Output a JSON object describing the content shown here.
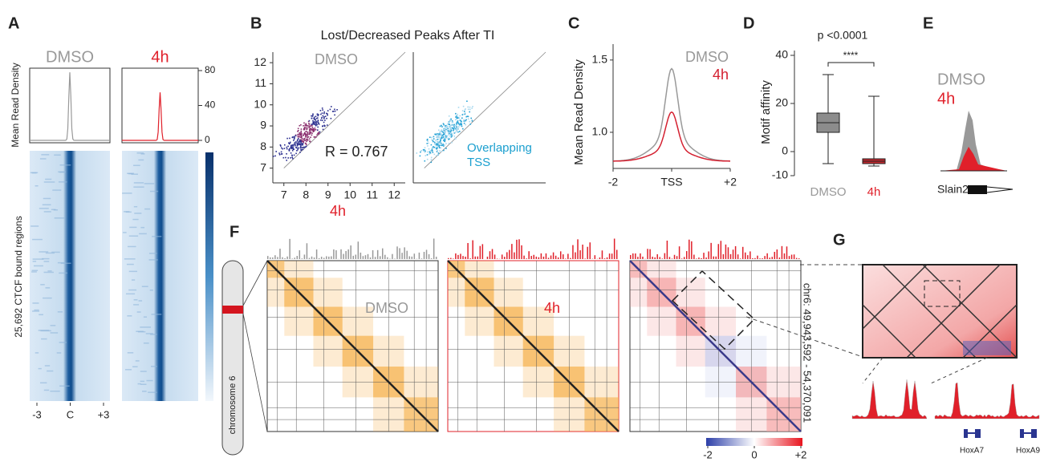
{
  "panels": {
    "A": {
      "label": "A",
      "conditions": [
        {
          "name": "DMSO",
          "color": "#999999",
          "peak": 78
        },
        {
          "name": "4h",
          "color": "#e0202a",
          "peak": 55
        }
      ],
      "ylabel": "Mean Read Density",
      "rows_label": "25,692 CTCF bound regions",
      "ylim": [
        0,
        80
      ],
      "yticks": [
        0,
        40,
        80
      ],
      "xlim": [
        -3,
        3
      ],
      "xticks": [
        -3,
        {
          "value": 0,
          "label": "C"
        },
        {
          "value": 3,
          "label": "+3"
        }
      ]
    },
    "B": {
      "label": "B",
      "title": "Lost/Decreased Peaks After TI",
      "ylabel": "DMSO",
      "xlabel": "4h",
      "annotation": "R = 0.767",
      "overlap_lines": [
        "Overlapping",
        "TSS"
      ],
      "xlim": [
        6.5,
        12.5
      ],
      "ylim": [
        6.3,
        12.5
      ],
      "xticks": [
        7,
        8,
        9,
        10,
        11,
        12
      ],
      "yticks": [
        7,
        8,
        9,
        10,
        11,
        12
      ]
    },
    "C": {
      "label": "C",
      "ylabel": "Mean Read Density",
      "series": [
        {
          "name": "DMSO",
          "color": "#999999",
          "peak": 1.44,
          "baseline": 0.8
        },
        {
          "name": "4h",
          "color": "#d42030",
          "peak": 1.14,
          "baseline": 0.8
        }
      ],
      "ylim": [
        0.75,
        1.61
      ],
      "yticks": [
        {
          "value": 1,
          "label": "1.0"
        },
        1.5
      ],
      "xlim": [
        -2,
        2
      ],
      "xticks": [
        -2,
        {
          "value": 0,
          "label": "TSS"
        },
        {
          "value": 2,
          "label": "+2"
        }
      ]
    },
    "D": {
      "label": "D",
      "pvalue": "p <0.0001",
      "significance": "****",
      "ylabel": "Motif affinity",
      "ylim": [
        -12,
        42
      ],
      "yticks": [
        -10,
        0,
        20,
        40
      ],
      "boxes": [
        {
          "name": "DMSO",
          "color": "#8c8c8c",
          "min": -5,
          "q1": 8,
          "median": 12,
          "q3": 16,
          "max": 32
        },
        {
          "name": "4h",
          "color": "#c0282e",
          "min": -6,
          "q1": -5,
          "median": -4,
          "q3": -3,
          "max": 23
        }
      ]
    },
    "E": {
      "label": "E",
      "conditions": [
        "DMSO",
        "4h"
      ],
      "gene": "Slain2"
    },
    "F": {
      "label": "F",
      "maps": [
        "DMSO",
        "4h"
      ],
      "chromosome": "chromosome 6",
      "region": "chr6: 49,943,592 - 54,370,091",
      "colorbar_lim": [
        -2,
        2
      ],
      "colorbar_ticks": [
        -2,
        0,
        {
          "value": 2,
          "label": "+2"
        }
      ]
    },
    "G": {
      "label": "G",
      "genes": [
        "HoxA7",
        "HoxA9"
      ]
    }
  }
}
